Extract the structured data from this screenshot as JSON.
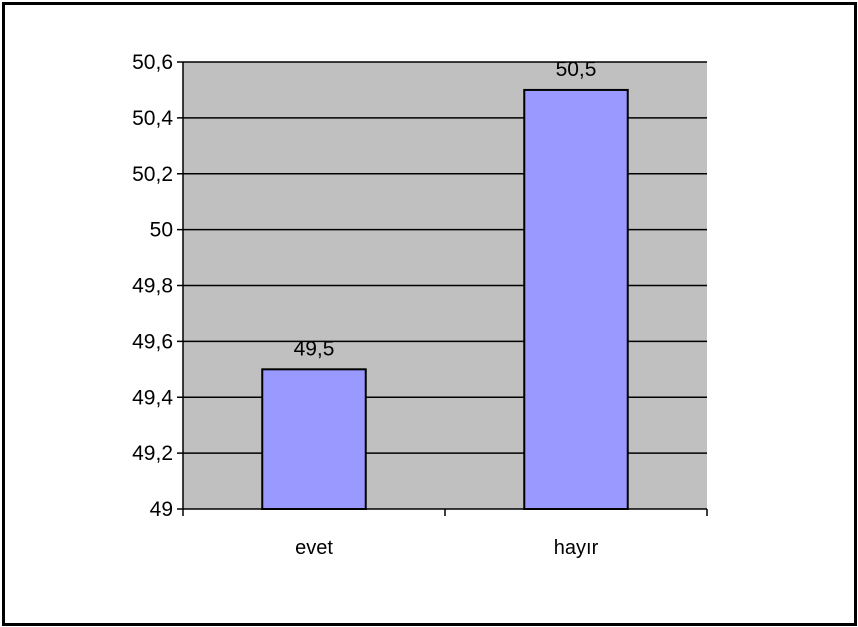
{
  "chart_data": {
    "type": "bar",
    "categories": [
      "evet",
      "hayır"
    ],
    "values": [
      49.5,
      50.5
    ],
    "data_labels": [
      "49,5",
      "50,5"
    ],
    "title": "",
    "xlabel": "",
    "ylabel": "",
    "ylim": [
      49,
      50.6
    ],
    "y_ticks": [
      49,
      49.2,
      49.4,
      49.6,
      49.8,
      50,
      50.2,
      50.4,
      50.6
    ],
    "y_tick_labels": [
      "49",
      "49,2",
      "49,4",
      "49,6",
      "49,8",
      "50",
      "50,2",
      "50,4",
      "50,6"
    ],
    "grid": true,
    "legend": "none",
    "colors": {
      "plot_background": "#c0c0c0",
      "bar_fill": "#9999ff",
      "bar_stroke": "#000000",
      "gridline": "#000000"
    }
  }
}
